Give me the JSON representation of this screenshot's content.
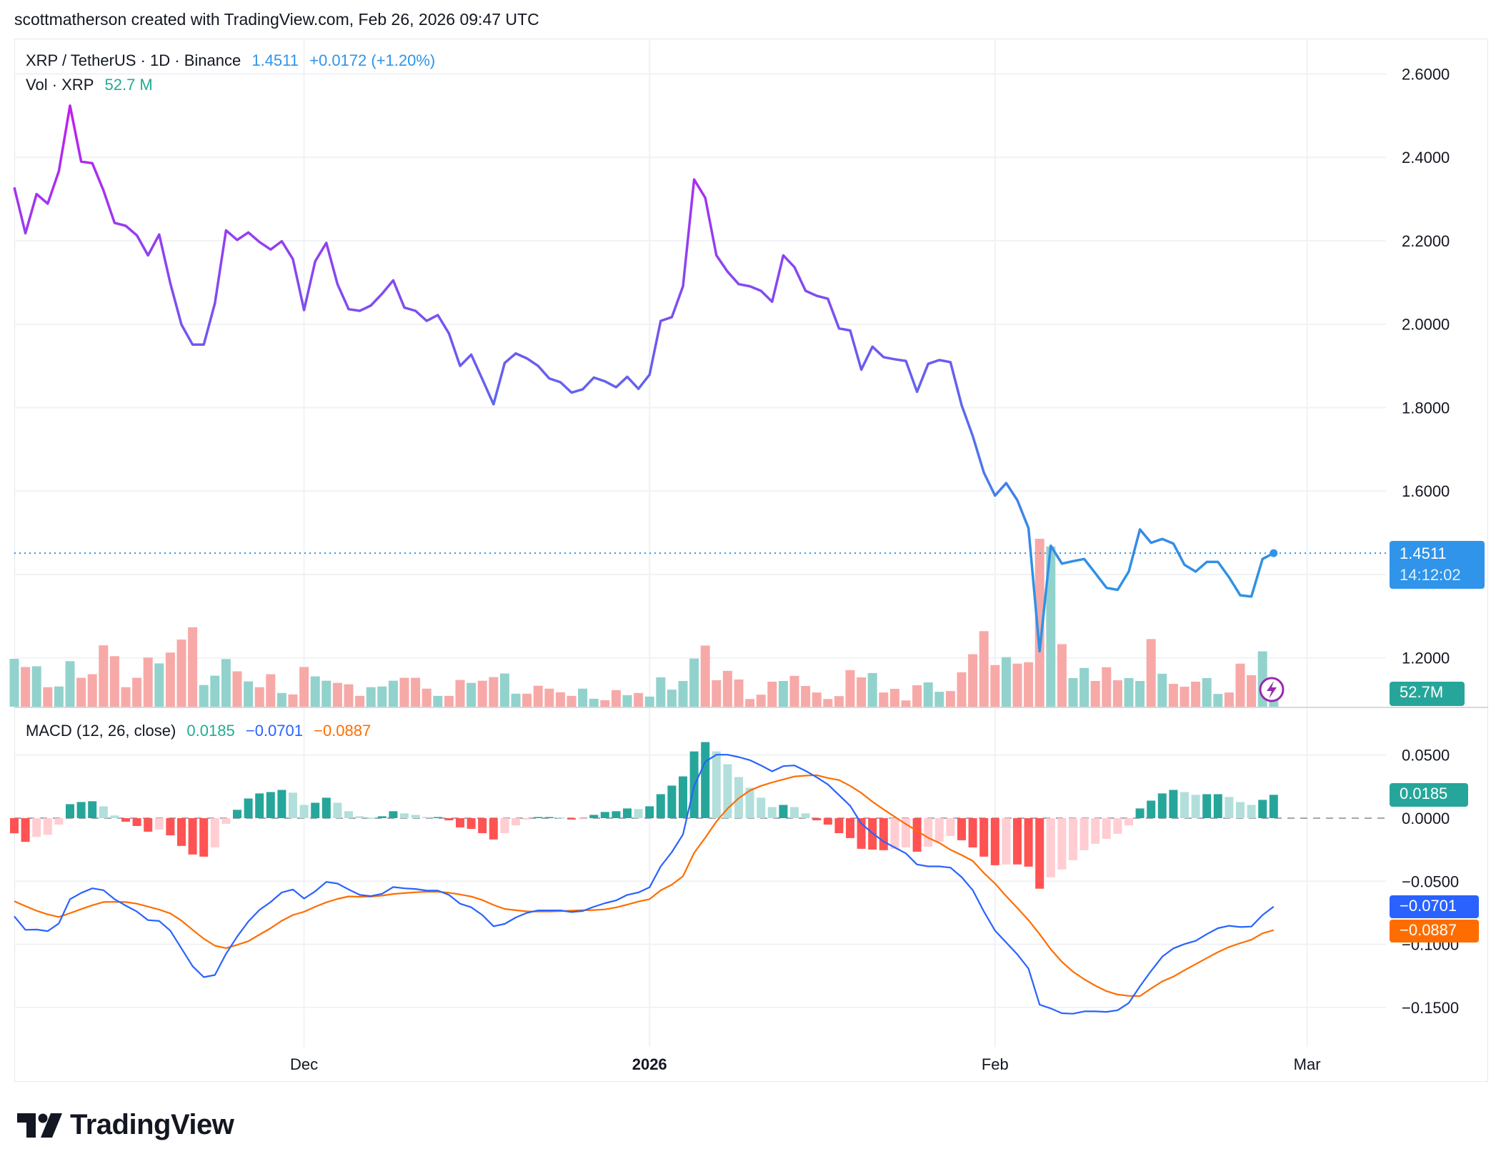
{
  "header": {
    "attribution": "scottmatherson created with TradingView.com, Feb 26, 2026 09:47 UTC"
  },
  "legend": {
    "symbol": "XRP / TetherUS · 1D · Binance",
    "last_price": "1.4511",
    "change": "+0.0172 (+1.20%)",
    "volume_label": "Vol · XRP",
    "volume_value": "52.7 M",
    "macd_label": "MACD (12, 26, close)",
    "macd_hist": "0.0185",
    "macd_line": "−0.0701",
    "macd_signal": "−0.0887"
  },
  "badges": {
    "price": "1.4511",
    "countdown": "14:12:02",
    "volume": "52.7M",
    "hist": "0.0185",
    "macd": "−0.0701",
    "signal": "−0.0887"
  },
  "logo": {
    "text": "TradingView"
  },
  "colors": {
    "price_line_top": "#c11ef2",
    "price_line_mid": "#6a5cf0",
    "price_line_bottom": "#2e92e6",
    "last_price": "#2f94ea",
    "volume_up": "#92d2cc",
    "volume_down": "#f7a9a7",
    "hist_up_strong": "#26a69a",
    "hist_up_weak": "#b2dfdb",
    "hist_down_strong": "#ff5252",
    "hist_down_weak": "#ffcdd2",
    "macd": "#2962ff",
    "signal": "#ff6d00"
  },
  "chart_data": [
    {
      "type": "line",
      "title": "XRP / TetherUS · 1D · Binance",
      "ylim": [
        1.1,
        2.7
      ],
      "y_ticks": [
        "2.6000",
        "2.4000",
        "2.2000",
        "2.0000",
        "1.8000",
        "1.6000",
        "1.2000"
      ],
      "x_ticks": [
        {
          "label": "Dec",
          "date": "2025-12-01",
          "bold": false
        },
        {
          "label": "2026",
          "date": "2026-01-01",
          "bold": true
        },
        {
          "label": "Feb",
          "date": "2026-02-01",
          "bold": false
        },
        {
          "label": "Mar",
          "date": "2026-03-01",
          "bold": false
        }
      ],
      "grid": true,
      "x": [
        "2025-11-05",
        "2025-11-06",
        "2025-11-07",
        "2025-11-08",
        "2025-11-09",
        "2025-11-10",
        "2025-11-11",
        "2025-11-12",
        "2025-11-13",
        "2025-11-14",
        "2025-11-15",
        "2025-11-16",
        "2025-11-17",
        "2025-11-18",
        "2025-11-19",
        "2025-11-20",
        "2025-11-21",
        "2025-11-22",
        "2025-11-23",
        "2025-11-24",
        "2025-11-25",
        "2025-11-26",
        "2025-11-27",
        "2025-11-28",
        "2025-11-29",
        "2025-11-30",
        "2025-12-01",
        "2025-12-02",
        "2025-12-03",
        "2025-12-04",
        "2025-12-05",
        "2025-12-06",
        "2025-12-07",
        "2025-12-08",
        "2025-12-09",
        "2025-12-10",
        "2025-12-11",
        "2025-12-12",
        "2025-12-13",
        "2025-12-14",
        "2025-12-15",
        "2025-12-16",
        "2025-12-17",
        "2025-12-18",
        "2025-12-19",
        "2025-12-20",
        "2025-12-21",
        "2025-12-22",
        "2025-12-23",
        "2025-12-24",
        "2025-12-25",
        "2025-12-26",
        "2025-12-27",
        "2025-12-28",
        "2025-12-29",
        "2025-12-30",
        "2025-12-31",
        "2026-01-01",
        "2026-01-02",
        "2026-01-03",
        "2026-01-04",
        "2026-01-05",
        "2026-01-06",
        "2026-01-07",
        "2026-01-08",
        "2026-01-09",
        "2026-01-10",
        "2026-01-11",
        "2026-01-12",
        "2026-01-13",
        "2026-01-14",
        "2026-01-15",
        "2026-01-16",
        "2026-01-17",
        "2026-01-18",
        "2026-01-19",
        "2026-01-20",
        "2026-01-21",
        "2026-01-22",
        "2026-01-23",
        "2026-01-24",
        "2026-01-25",
        "2026-01-26",
        "2026-01-27",
        "2026-01-28",
        "2026-01-29",
        "2026-01-30",
        "2026-01-31",
        "2026-02-01",
        "2026-02-02",
        "2026-02-03",
        "2026-02-04",
        "2026-02-05",
        "2026-02-06",
        "2026-02-07",
        "2026-02-08",
        "2026-02-09",
        "2026-02-10",
        "2026-02-11",
        "2026-02-12",
        "2026-02-13",
        "2026-02-14",
        "2026-02-15",
        "2026-02-16",
        "2026-02-17",
        "2026-02-18",
        "2026-02-19",
        "2026-02-20",
        "2026-02-21",
        "2026-02-22",
        "2026-02-23",
        "2026-02-24",
        "2026-02-25",
        "2026-02-26"
      ],
      "close": [
        2.328,
        2.218,
        2.312,
        2.289,
        2.367,
        2.524,
        2.39,
        2.386,
        2.321,
        2.243,
        2.236,
        2.213,
        2.165,
        2.215,
        2.098,
        1.999,
        1.951,
        1.951,
        2.05,
        2.225,
        2.202,
        2.22,
        2.197,
        2.179,
        2.199,
        2.156,
        2.034,
        2.151,
        2.195,
        2.096,
        2.036,
        2.032,
        2.045,
        2.073,
        2.105,
        2.04,
        2.032,
        2.008,
        2.022,
        1.978,
        1.9,
        1.927,
        1.868,
        1.808,
        1.907,
        1.93,
        1.918,
        1.9,
        1.87,
        1.861,
        1.836,
        1.844,
        1.872,
        1.863,
        1.849,
        1.874,
        1.845,
        1.879,
        2.008,
        2.017,
        2.091,
        2.347,
        2.303,
        2.165,
        2.126,
        2.096,
        2.091,
        2.08,
        2.054,
        2.165,
        2.137,
        2.08,
        2.068,
        2.061,
        1.99,
        1.985,
        1.891,
        1.946,
        1.921,
        1.916,
        1.912,
        1.838,
        1.905,
        1.914,
        1.909,
        1.806,
        1.732,
        1.644,
        1.589,
        1.619,
        1.578,
        1.511,
        1.216,
        1.469,
        1.426,
        1.432,
        1.437,
        1.403,
        1.368,
        1.363,
        1.407,
        1.508,
        1.476,
        1.485,
        1.474,
        1.423,
        1.407,
        1.43,
        1.43,
        1.393,
        1.35,
        1.347,
        1.437,
        1.4511
      ],
      "last_value": 1.4511
    },
    {
      "type": "bar",
      "title": "Vol · XRP",
      "unit": "M",
      "values": [
        177.5,
        147.2,
        149.9,
        72.3,
        74.9,
        168.6,
        107.0,
        120.4,
        227.5,
        187.3,
        72.3,
        107.0,
        182.0,
        160.6,
        200.7,
        248.9,
        294.4,
        80.3,
        115.1,
        176.6,
        131.1,
        93.7,
        72.3,
        120.4,
        50.8,
        45.5,
        147.2,
        112.4,
        96.3,
        88.3,
        83.0,
        40.1,
        72.3,
        74.9,
        96.3,
        107.0,
        107.0,
        66.9,
        40.1,
        40.1,
        99.0,
        88.3,
        96.3,
        109.7,
        123.1,
        48.2,
        48.2,
        77.6,
        66.9,
        53.5,
        40.1,
        66.9,
        29.4,
        24.1,
        61.5,
        42.8,
        50.8,
        37.5,
        108.8,
        63.3,
        95.4,
        178.4,
        226.6,
        98.1,
        132.9,
        100.8,
        28.5,
        44.6,
        92.8,
        95.4,
        114.2,
        76.7,
        52.6,
        28.5,
        39.2,
        135.6,
        108.8,
        124.9,
        52.6,
        66.0,
        23.2,
        79.4,
        90.1,
        55.3,
        58.0,
        127.6,
        194.5,
        280.1,
        154.3,
        183.8,
        159.7,
        165.0,
        622.6,
        594.1,
        231.9,
        106.1,
        143.6,
        95.4,
        146.3,
        98.1,
        106.1,
        95.4,
        250.7,
        122.2,
        84.7,
        74.0,
        92.8,
        106.1,
        47.3,
        52.6,
        159.7,
        116.9,
        205.2,
        52.7
      ],
      "direction": [
        "up",
        "down",
        "up",
        "down",
        "up",
        "up",
        "down",
        "down",
        "down",
        "down",
        "down",
        "down",
        "down",
        "up",
        "down",
        "down",
        "down",
        "up",
        "up",
        "up",
        "down",
        "up",
        "down",
        "down",
        "up",
        "down",
        "down",
        "up",
        "up",
        "down",
        "down",
        "down",
        "up",
        "up",
        "up",
        "down",
        "down",
        "down",
        "up",
        "down",
        "down",
        "up",
        "down",
        "down",
        "up",
        "up",
        "down",
        "down",
        "down",
        "down",
        "down",
        "up",
        "up",
        "down",
        "down",
        "up",
        "down",
        "up",
        "up",
        "up",
        "up",
        "up",
        "down",
        "down",
        "down",
        "down",
        "down",
        "down",
        "down",
        "up",
        "down",
        "down",
        "down",
        "down",
        "down",
        "down",
        "down",
        "up",
        "down",
        "down",
        "down",
        "down",
        "up",
        "up",
        "down",
        "down",
        "down",
        "down",
        "down",
        "up",
        "down",
        "down",
        "down",
        "up",
        "down",
        "up",
        "up",
        "down",
        "down",
        "down",
        "up",
        "up",
        "down",
        "up",
        "down",
        "down",
        "down",
        "up",
        "up",
        "down",
        "down",
        "down",
        "up",
        "up"
      ]
    },
    {
      "type": "bar+line",
      "title": "MACD (12, 26, close)",
      "ylim": [
        -0.175,
        0.075
      ],
      "y_ticks": [
        "0.0500",
        "0.0000",
        "−0.0500",
        "−0.1000",
        "−0.1500"
      ],
      "histogram": [
        -0.012,
        -0.0188,
        -0.0149,
        -0.0132,
        -0.0051,
        0.0111,
        0.0128,
        0.0134,
        0.0094,
        0.0021,
        -0.0028,
        -0.0062,
        -0.0107,
        -0.009,
        -0.0136,
        -0.022,
        -0.0288,
        -0.0305,
        -0.0232,
        -0.0045,
        0.0066,
        0.0156,
        0.0196,
        0.0207,
        0.0224,
        0.0202,
        0.0105,
        0.0122,
        0.0162,
        0.0122,
        0.0055,
        0.0015,
        0.0004,
        0.0015,
        0.0055,
        0.0038,
        0.0026,
        0.0009,
        0.0009,
        -0.0017,
        -0.0073,
        -0.0085,
        -0.0119,
        -0.0169,
        -0.0119,
        -0.0057,
        -0.0011,
        0.0009,
        0.0009,
        0.0006,
        -0.0011,
        -0.0006,
        0.0026,
        0.0049,
        0.0055,
        0.0077,
        0.0072,
        0.0094,
        0.019,
        0.0258,
        0.0331,
        0.0529,
        0.0603,
        0.0529,
        0.0427,
        0.0326,
        0.0241,
        0.0162,
        0.0088,
        0.0105,
        0.0088,
        0.0038,
        -0.0017,
        -0.0051,
        -0.0119,
        -0.0158,
        -0.0243,
        -0.0249,
        -0.0254,
        -0.0243,
        -0.0232,
        -0.0266,
        -0.0226,
        -0.0186,
        -0.0141,
        -0.0175,
        -0.0232,
        -0.0305,
        -0.0373,
        -0.0367,
        -0.0367,
        -0.0384,
        -0.0559,
        -0.0469,
        -0.0407,
        -0.0333,
        -0.0254,
        -0.0203,
        -0.0164,
        -0.0124,
        -0.0057,
        0.0077,
        0.0139,
        0.0196,
        0.0224,
        0.0207,
        0.0185,
        0.019,
        0.019,
        0.0168,
        0.0128,
        0.0105,
        0.0145,
        0.0185
      ],
      "macd": [
        -0.0778,
        -0.0885,
        -0.0883,
        -0.0895,
        -0.0834,
        -0.0642,
        -0.0593,
        -0.0556,
        -0.0571,
        -0.0642,
        -0.0693,
        -0.074,
        -0.0808,
        -0.0815,
        -0.0891,
        -0.1032,
        -0.1173,
        -0.126,
        -0.1243,
        -0.1075,
        -0.0938,
        -0.0819,
        -0.0727,
        -0.0665,
        -0.0589,
        -0.0565,
        -0.0637,
        -0.058,
        -0.0505,
        -0.0518,
        -0.0565,
        -0.0608,
        -0.0618,
        -0.0599,
        -0.0546,
        -0.0556,
        -0.0561,
        -0.0574,
        -0.0574,
        -0.0608,
        -0.0678,
        -0.0706,
        -0.0768,
        -0.0857,
        -0.0838,
        -0.0787,
        -0.075,
        -0.0731,
        -0.0731,
        -0.0731,
        -0.0744,
        -0.0736,
        -0.0702,
        -0.0674,
        -0.0652,
        -0.0608,
        -0.0589,
        -0.0548,
        -0.0382,
        -0.0269,
        -0.0129,
        0.0254,
        0.0448,
        0.0503,
        0.0503,
        0.0484,
        0.046,
        0.0418,
        0.0371,
        0.0412,
        0.0418,
        0.0375,
        0.0324,
        0.0267,
        0.0183,
        0.0098,
        -0.0043,
        -0.0119,
        -0.0185,
        -0.0232,
        -0.0279,
        -0.0367,
        -0.0382,
        -0.0382,
        -0.0392,
        -0.0467,
        -0.0571,
        -0.074,
        -0.0891,
        -0.0985,
        -0.1079,
        -0.1192,
        -0.1478,
        -0.1508,
        -0.1546,
        -0.155,
        -0.1531,
        -0.1531,
        -0.1535,
        -0.1522,
        -0.1465,
        -0.1333,
        -0.1211,
        -0.1098,
        -0.1032,
        -0.0998,
        -0.0972,
        -0.0919,
        -0.0872,
        -0.0853,
        -0.0863,
        -0.0859,
        -0.0768,
        -0.0701
      ],
      "signal": [
        -0.0658,
        -0.0697,
        -0.0734,
        -0.0763,
        -0.0783,
        -0.0753,
        -0.0721,
        -0.069,
        -0.0665,
        -0.0663,
        -0.0665,
        -0.0678,
        -0.0701,
        -0.0725,
        -0.0755,
        -0.0812,
        -0.0885,
        -0.0955,
        -0.1011,
        -0.103,
        -0.1004,
        -0.0975,
        -0.0923,
        -0.0872,
        -0.0813,
        -0.0767,
        -0.0742,
        -0.0702,
        -0.0667,
        -0.064,
        -0.062,
        -0.0623,
        -0.0622,
        -0.0614,
        -0.0601,
        -0.0594,
        -0.0587,
        -0.0583,
        -0.0583,
        -0.0591,
        -0.0605,
        -0.0621,
        -0.0649,
        -0.0688,
        -0.0719,
        -0.073,
        -0.0739,
        -0.074,
        -0.074,
        -0.0737,
        -0.0733,
        -0.073,
        -0.0728,
        -0.0723,
        -0.0707,
        -0.0685,
        -0.0661,
        -0.0642,
        -0.0572,
        -0.0527,
        -0.046,
        -0.0275,
        -0.0155,
        -0.0026,
        0.0076,
        0.0158,
        0.0219,
        0.0256,
        0.0283,
        0.0307,
        0.033,
        0.0337,
        0.0341,
        0.0318,
        0.0302,
        0.0256,
        0.02,
        0.013,
        0.0069,
        0.0011,
        -0.0047,
        -0.0101,
        -0.0156,
        -0.0196,
        -0.0251,
        -0.0292,
        -0.0339,
        -0.0435,
        -0.0518,
        -0.0618,
        -0.0712,
        -0.0808,
        -0.0919,
        -0.1039,
        -0.1139,
        -0.1217,
        -0.1277,
        -0.1328,
        -0.1371,
        -0.1398,
        -0.1408,
        -0.141,
        -0.135,
        -0.1294,
        -0.1256,
        -0.1205,
        -0.1157,
        -0.1109,
        -0.1062,
        -0.1021,
        -0.0991,
        -0.0964,
        -0.0913,
        -0.0887
      ]
    }
  ]
}
